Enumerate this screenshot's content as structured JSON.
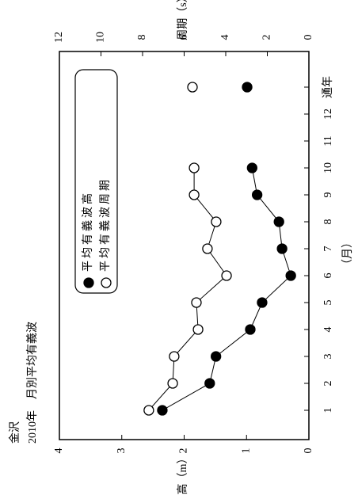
{
  "chart_data": {
    "type": "line",
    "title": "金沢",
    "subtitle": "2010年　月別平均有義波",
    "x_label": "（月）",
    "y_label": "波高（m）",
    "y2_label": "周期（s）",
    "categories": [
      "1",
      "2",
      "3",
      "4",
      "5",
      "6",
      "7",
      "8",
      "9",
      "10",
      "11",
      "12",
      "通年"
    ],
    "series": [
      {
        "name": "平均有義波高",
        "color": "#000000",
        "marker": "filled",
        "values": [
          2.35,
          1.59,
          1.49,
          0.94,
          0.75,
          0.29,
          0.43,
          0.48,
          0.83,
          0.91,
          null,
          null,
          0.99
        ]
      },
      {
        "name": "平均有義波周期",
        "color": "#000000",
        "marker": "open",
        "axis": "y2",
        "values": [
          7.7,
          6.55,
          6.48,
          5.33,
          5.41,
          3.96,
          4.88,
          4.46,
          5.52,
          5.52,
          null,
          null,
          5.6
        ]
      }
    ],
    "ylim": [
      0,
      4
    ],
    "yticks": [
      0,
      1,
      2,
      3,
      4
    ],
    "y2lim": [
      0,
      12
    ],
    "y2ticks": [
      0,
      2,
      4,
      6,
      8,
      10,
      12
    ],
    "grid": false
  }
}
